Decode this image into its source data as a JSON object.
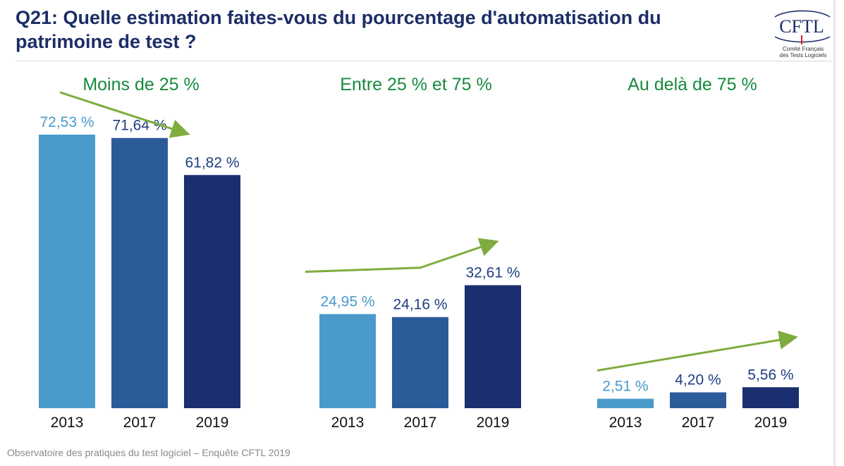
{
  "slide": {
    "title": "Q21: Quelle estimation faites-vous du pourcentage d'automatisation du patrimoine de test ?",
    "footer": "Observatoire des pratiques du test logiciel – Enquête CFTL 2019"
  },
  "logo": {
    "letters": "CFTL",
    "caption_line1": "Comité Français",
    "caption_line2": "des Tests Logiciels"
  },
  "chart_data": {
    "type": "bar",
    "ylim": [
      0,
      80
    ],
    "grid": false,
    "colors": {
      "2013": "#4a9acb",
      "2017": "#2c5b9a",
      "2019": "#1b2e70",
      "group_title": "#178a3c",
      "trend_arrow": "#7fac3e",
      "value_2013": "#4a9acb",
      "value_other": "#1f3f80"
    },
    "groups": [
      {
        "title": "Moins de 25 %",
        "trend": "down",
        "bars": [
          {
            "category": "2013",
            "value": 72.53,
            "label": "72,53 %"
          },
          {
            "category": "2017",
            "value": 71.64,
            "label": "71,64 %"
          },
          {
            "category": "2019",
            "value": 61.82,
            "label": "61,82 %"
          }
        ]
      },
      {
        "title": "Entre 25 % et 75 %",
        "trend": "up",
        "bars": [
          {
            "category": "2013",
            "value": 24.95,
            "label": "24,95 %"
          },
          {
            "category": "2017",
            "value": 24.16,
            "label": "24,16 %"
          },
          {
            "category": "2019",
            "value": 32.61,
            "label": "32,61 %"
          }
        ]
      },
      {
        "title": "Au delà de 75 %",
        "trend": "up",
        "bars": [
          {
            "category": "2013",
            "value": 2.51,
            "label": "2,51 %"
          },
          {
            "category": "2017",
            "value": 4.2,
            "label": "4,20 %"
          },
          {
            "category": "2019",
            "value": 5.56,
            "label": "5,56 %"
          }
        ]
      }
    ]
  }
}
